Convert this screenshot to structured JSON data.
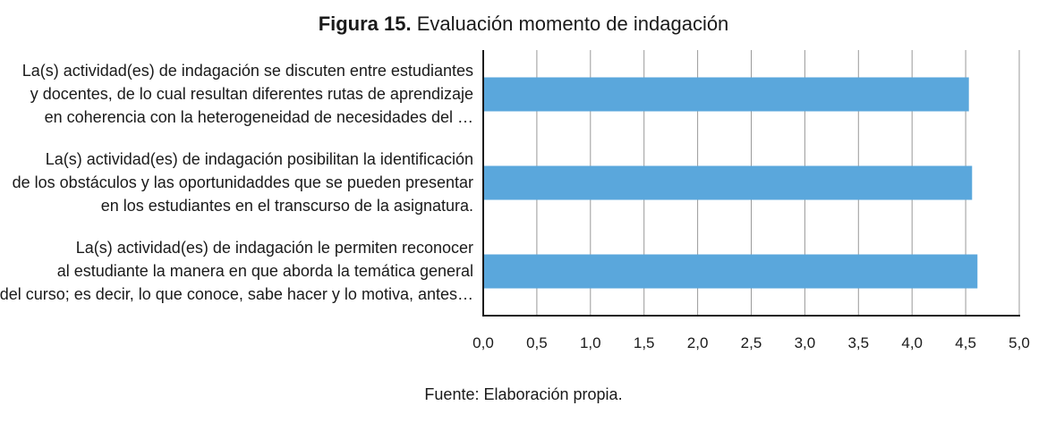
{
  "figure": {
    "label": "Figura 15.",
    "title": "Evaluación momento de indagación",
    "source": "Fuente: Elaboración propia."
  },
  "chart_data": {
    "type": "bar",
    "orientation": "horizontal",
    "categories": [
      [
        "La(s) actividad(es) de indagación se discuten entre estudiantes",
        "y docentes, de lo cual resultan diferentes rutas de aprendizaje",
        "en coherencia con la heterogeneidad de necesidades del …"
      ],
      [
        "La(s) actividad(es) de indagación posibilitan la identificación",
        "de los obstáculos y las oportunidaddes que se pueden presentar",
        "en los estudiantes en el transcurso de la asignatura."
      ],
      [
        "La(s) actividad(es) de indagación le permiten reconocer",
        "al estudiante la manera en que aborda la temática general",
        "del curso; es decir, lo que conoce, sabe hacer y lo motiva, antes…"
      ]
    ],
    "values": [
      4.53,
      4.56,
      4.61
    ],
    "xlim": [
      0,
      5
    ],
    "ticks": [
      "0,0",
      "0,5",
      "1,0",
      "1,5",
      "2,0",
      "2,5",
      "3,0",
      "3,5",
      "4,0",
      "4,5",
      "5,0"
    ],
    "tick_values": [
      0,
      0.5,
      1,
      1.5,
      2,
      2.5,
      3,
      3.5,
      4,
      4.5,
      5
    ],
    "grid": true,
    "bar_color": "#5aa7dc",
    "grid_color": "#9a9a9a",
    "axis_color": "#1a1a1a"
  }
}
